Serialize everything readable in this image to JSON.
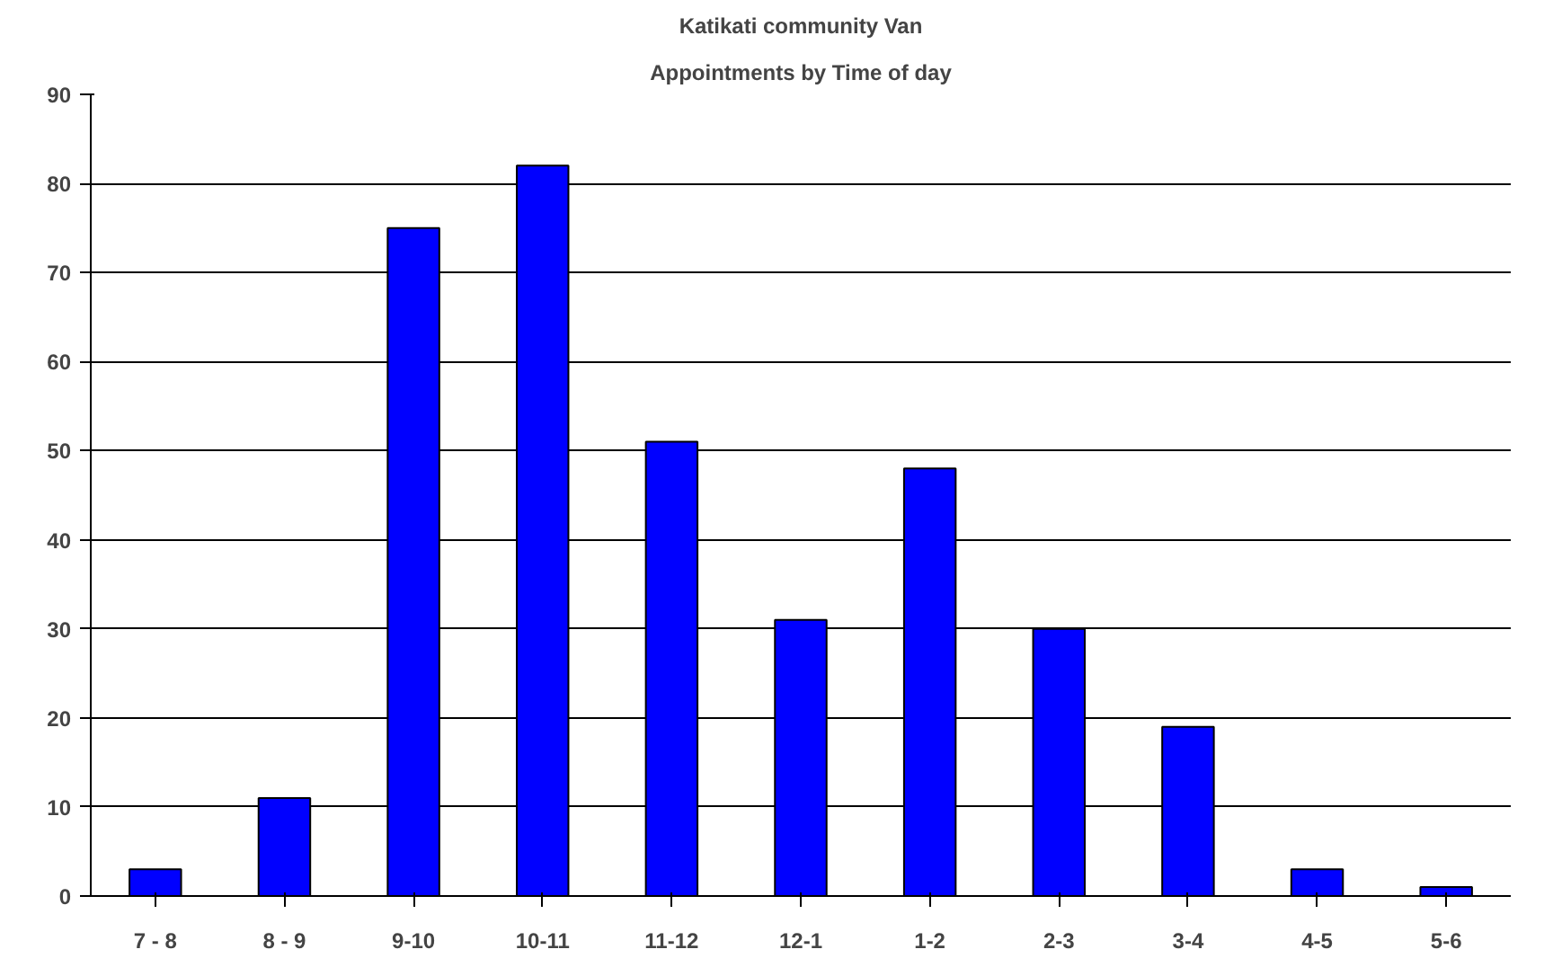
{
  "chart_data": {
    "type": "bar",
    "title": "Katikati community Van",
    "subtitle": "Appointments by Time of day",
    "categories": [
      "7 - 8",
      "8 - 9",
      "9-10",
      "10-11",
      "11-12",
      "12-1",
      "1-2",
      "2-3",
      "3-4",
      "4-5",
      "5-6"
    ],
    "values": [
      3,
      11,
      75,
      82,
      51,
      31,
      48,
      30,
      19,
      3,
      1
    ],
    "color": "#0000ff",
    "ylim": [
      0,
      90
    ],
    "yticks": [
      0,
      10,
      20,
      30,
      40,
      50,
      60,
      70,
      80,
      90
    ],
    "grid": "y"
  }
}
